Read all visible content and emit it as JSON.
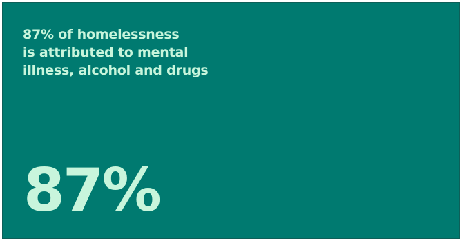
{
  "card": {
    "statement_lines": [
      "87% of homelessness",
      "is attributed to mental",
      "illness, alcohol and drugs"
    ],
    "big_figure": "87%",
    "colors": {
      "background": "#007a70",
      "text": "#c8f5dc",
      "border": "#0e5f58"
    }
  }
}
